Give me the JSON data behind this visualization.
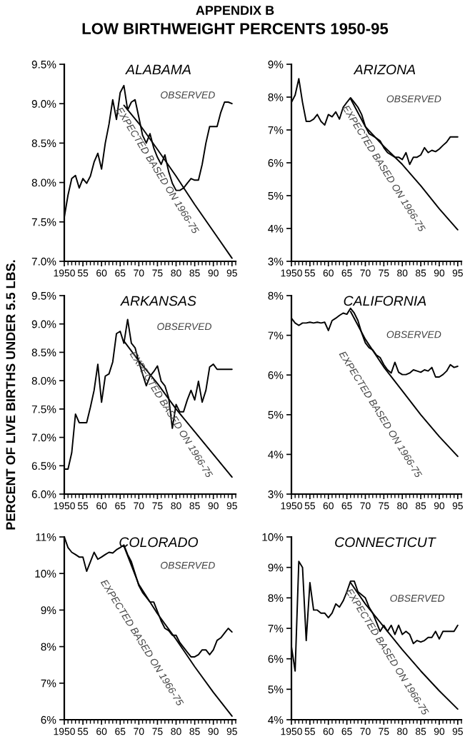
{
  "chart_data": [
    {
      "type": "line",
      "title": "ALABAMA",
      "annotations": [
        "APPENDIX B",
        "LOW BIRTHWEIGHT PERCENTS 1950-95",
        "OBSERVED",
        "EXPECTED BASED ON 1966-75"
      ],
      "xlim": [
        1950,
        1996
      ],
      "xticks": [
        {
          "value": 1950,
          "label": "1950"
        },
        {
          "value": 1955,
          "label": "55"
        },
        {
          "value": 1960,
          "label": "60"
        },
        {
          "value": 1965,
          "label": "65"
        },
        {
          "value": 1970,
          "label": "70"
        },
        {
          "value": 1975,
          "label": "75"
        },
        {
          "value": 1980,
          "label": "80"
        },
        {
          "value": 1985,
          "label": "85"
        },
        {
          "value": 1990,
          "label": "90"
        },
        {
          "value": 1995,
          "label": "95"
        }
      ],
      "ylim": [
        7.0,
        9.5
      ],
      "yticks": [
        {
          "value": 7.0,
          "label": "7.0%"
        },
        {
          "value": 7.5,
          "label": "7.5%"
        },
        {
          "value": 8.0,
          "label": "8.0%"
        },
        {
          "value": 8.5,
          "label": "8.5%"
        },
        {
          "value": 9.0,
          "label": "9.0%"
        },
        {
          "value": 9.5,
          "label": "9.5%"
        }
      ],
      "series": [
        {
          "color": "#000000",
          "x": [
            1950,
            1951,
            1952,
            1953,
            1954,
            1955,
            1956,
            1957,
            1958,
            1959,
            1960,
            1961,
            1962,
            1963,
            1964,
            1965,
            1966,
            1967,
            1968,
            1969,
            1970,
            1971,
            1972,
            1973,
            1974,
            1975,
            1976,
            1977,
            1978,
            1979,
            1980,
            1981,
            1982,
            1983,
            1984,
            1985,
            1986,
            1987,
            1988,
            1989,
            1990,
            1991,
            1992,
            1993,
            1994,
            1995
          ],
          "values": [
            7.56,
            7.84,
            8.05,
            8.09,
            7.93,
            8.05,
            7.99,
            8.08,
            8.26,
            8.37,
            8.17,
            8.5,
            8.74,
            9.05,
            8.8,
            9.14,
            9.23,
            8.92,
            9.02,
            9.05,
            8.83,
            8.6,
            8.5,
            8.62,
            8.44,
            8.32,
            8.23,
            8.35,
            8.14,
            7.99,
            7.9,
            7.9,
            7.93,
            7.99,
            8.05,
            8.03,
            8.03,
            8.23,
            8.5,
            8.71,
            8.71,
            8.71,
            8.89,
            9.02,
            9.02,
            9.0
          ]
        },
        {
          "color": "#000000",
          "x": [
            1966,
            1970,
            1975,
            1980,
            1985,
            1990,
            1995
          ],
          "values": [
            8.98,
            8.75,
            8.42,
            8.08,
            7.72,
            7.38,
            7.04
          ]
        }
      ]
    },
    {
      "type": "line",
      "title": "ARIZONA",
      "annotations": [
        "OBSERVED",
        "EXPECTED BASED ON 1966-75"
      ],
      "xlim": [
        1950,
        1996
      ],
      "xticks": [
        {
          "value": 1950,
          "label": "1950"
        },
        {
          "value": 1955,
          "label": "55"
        },
        {
          "value": 1960,
          "label": "60"
        },
        {
          "value": 1965,
          "label": "65"
        },
        {
          "value": 1970,
          "label": "70"
        },
        {
          "value": 1975,
          "label": "75"
        },
        {
          "value": 1980,
          "label": "80"
        },
        {
          "value": 1985,
          "label": "85"
        },
        {
          "value": 1990,
          "label": "90"
        },
        {
          "value": 1995,
          "label": "95"
        }
      ],
      "ylim": [
        3,
        9
      ],
      "yticks": [
        {
          "value": 3,
          "label": "3%"
        },
        {
          "value": 4,
          "label": "4%"
        },
        {
          "value": 5,
          "label": "5%"
        },
        {
          "value": 6,
          "label": "6%"
        },
        {
          "value": 7,
          "label": "7%"
        },
        {
          "value": 8,
          "label": "8%"
        },
        {
          "value": 9,
          "label": "9%"
        }
      ],
      "series": [
        {
          "color": "#000000",
          "x": [
            1950,
            1951,
            1952,
            1953,
            1954,
            1955,
            1956,
            1957,
            1958,
            1959,
            1960,
            1961,
            1962,
            1963,
            1964,
            1965,
            1966,
            1967,
            1968,
            1969,
            1970,
            1971,
            1972,
            1973,
            1974,
            1975,
            1976,
            1977,
            1978,
            1979,
            1980,
            1981,
            1982,
            1983,
            1984,
            1985,
            1986,
            1987,
            1988,
            1989,
            1990,
            1991,
            1992,
            1993,
            1994,
            1995
          ],
          "values": [
            7.84,
            8.06,
            8.56,
            7.84,
            7.26,
            7.26,
            7.33,
            7.47,
            7.26,
            7.15,
            7.47,
            7.4,
            7.55,
            7.33,
            7.69,
            7.84,
            7.98,
            7.84,
            7.69,
            7.47,
            7.11,
            6.89,
            6.82,
            6.75,
            6.67,
            6.46,
            6.31,
            6.24,
            6.17,
            6.17,
            6.1,
            6.31,
            5.95,
            6.17,
            6.17,
            6.24,
            6.46,
            6.31,
            6.38,
            6.34,
            6.42,
            6.53,
            6.63,
            6.79,
            6.79,
            6.79
          ]
        },
        {
          "color": "#000000",
          "x": [
            1966,
            1970,
            1975,
            1980,
            1985,
            1990,
            1995
          ],
          "values": [
            7.95,
            7.1,
            6.5,
            5.95,
            5.3,
            4.6,
            3.96
          ]
        }
      ]
    },
    {
      "type": "line",
      "title": "ARKANSAS",
      "ylabel": "PERCENT OF LIVE BIRTHS UNDER 5.5 LBS.",
      "annotations": [
        "OBSERVED",
        "EXPECTED BASED ON 1966-75"
      ],
      "xlim": [
        1950,
        1996
      ],
      "xticks": [
        {
          "value": 1950,
          "label": "1950"
        },
        {
          "value": 1955,
          "label": "55"
        },
        {
          "value": 1960,
          "label": "60"
        },
        {
          "value": 1965,
          "label": "65"
        },
        {
          "value": 1970,
          "label": "70"
        },
        {
          "value": 1975,
          "label": "75"
        },
        {
          "value": 1980,
          "label": "80"
        },
        {
          "value": 1985,
          "label": "85"
        },
        {
          "value": 1990,
          "label": "90"
        },
        {
          "value": 1995,
          "label": "95"
        }
      ],
      "ylim": [
        6.0,
        9.5
      ],
      "yticks": [
        {
          "value": 6.0,
          "label": "6.0%"
        },
        {
          "value": 6.5,
          "label": "6.5%"
        },
        {
          "value": 7.0,
          "label": "7.0%"
        },
        {
          "value": 7.5,
          "label": "7.5%"
        },
        {
          "value": 8.0,
          "label": "8.0%"
        },
        {
          "value": 8.5,
          "label": "8.5%"
        },
        {
          "value": 9.0,
          "label": "9.0%"
        },
        {
          "value": 9.5,
          "label": "9.5%"
        }
      ],
      "series": [
        {
          "color": "#000000",
          "x": [
            1950,
            1951,
            1952,
            1953,
            1954,
            1955,
            1956,
            1957,
            1958,
            1959,
            1960,
            1961,
            1962,
            1963,
            1964,
            1965,
            1966,
            1967,
            1968,
            1969,
            1970,
            1971,
            1972,
            1973,
            1974,
            1975,
            1976,
            1977,
            1978,
            1979,
            1980,
            1981,
            1982,
            1983,
            1984,
            1985,
            1986,
            1987,
            1988,
            1989,
            1990,
            1991,
            1992,
            1993,
            1994,
            1995
          ],
          "values": [
            6.44,
            6.44,
            6.73,
            7.41,
            7.26,
            7.26,
            7.26,
            7.53,
            7.83,
            8.29,
            7.62,
            8.08,
            8.12,
            8.33,
            8.83,
            8.87,
            8.66,
            9.08,
            8.66,
            8.58,
            8.33,
            8.12,
            7.91,
            8.08,
            8.16,
            8.26,
            7.99,
            7.91,
            7.7,
            7.16,
            7.58,
            7.45,
            7.45,
            7.66,
            7.83,
            7.66,
            7.99,
            7.62,
            7.83,
            8.24,
            8.29,
            8.2,
            8.2,
            8.2,
            8.2,
            8.2
          ]
        },
        {
          "color": "#000000",
          "x": [
            1966,
            1970,
            1975,
            1980,
            1985,
            1990,
            1995
          ],
          "values": [
            8.7,
            8.35,
            7.95,
            7.5,
            7.1,
            6.7,
            6.3
          ]
        }
      ]
    },
    {
      "type": "line",
      "title": "CALIFORNIA",
      "annotations": [
        "OBSERVED",
        "EXPECTED BASED ON 1966-75"
      ],
      "xlim": [
        1950,
        1996
      ],
      "xticks": [
        {
          "value": 1950,
          "label": "1950"
        },
        {
          "value": 1955,
          "label": "55"
        },
        {
          "value": 1960,
          "label": "60"
        },
        {
          "value": 1965,
          "label": "65"
        },
        {
          "value": 1970,
          "label": "70"
        },
        {
          "value": 1975,
          "label": "75"
        },
        {
          "value": 1980,
          "label": "80"
        },
        {
          "value": 1985,
          "label": "85"
        },
        {
          "value": 1990,
          "label": "90"
        },
        {
          "value": 1995,
          "label": "95"
        }
      ],
      "ylim": [
        3,
        8
      ],
      "yticks": [
        {
          "value": 3,
          "label": "3%"
        },
        {
          "value": 4,
          "label": "4%"
        },
        {
          "value": 5,
          "label": "5%"
        },
        {
          "value": 6,
          "label": "6%"
        },
        {
          "value": 7,
          "label": "7%"
        },
        {
          "value": 8,
          "label": "8%"
        }
      ],
      "series": [
        {
          "color": "#000000",
          "x": [
            1950,
            1951,
            1952,
            1953,
            1954,
            1955,
            1956,
            1957,
            1958,
            1959,
            1960,
            1961,
            1962,
            1963,
            1964,
            1965,
            1966,
            1967,
            1968,
            1969,
            1970,
            1971,
            1972,
            1973,
            1974,
            1975,
            1976,
            1977,
            1978,
            1979,
            1980,
            1981,
            1982,
            1983,
            1984,
            1985,
            1986,
            1987,
            1988,
            1989,
            1990,
            1991,
            1992,
            1993,
            1994,
            1995
          ],
          "values": [
            7.43,
            7.31,
            7.25,
            7.31,
            7.31,
            7.33,
            7.31,
            7.33,
            7.31,
            7.33,
            7.12,
            7.37,
            7.43,
            7.5,
            7.56,
            7.53,
            7.68,
            7.56,
            7.37,
            7.06,
            6.81,
            6.69,
            6.63,
            6.5,
            6.44,
            6.26,
            6.13,
            6.05,
            6.32,
            6.07,
            6.01,
            6.01,
            6.05,
            6.13,
            6.1,
            6.07,
            6.13,
            6.1,
            6.19,
            5.95,
            5.95,
            6.01,
            6.1,
            6.26,
            6.19,
            6.22
          ]
        },
        {
          "color": "#000000",
          "x": [
            1966,
            1970,
            1975,
            1980,
            1985,
            1990,
            1995
          ],
          "values": [
            7.6,
            6.9,
            6.2,
            5.6,
            5.0,
            4.45,
            3.95
          ]
        }
      ]
    },
    {
      "type": "line",
      "title": "COLORADO",
      "annotations": [
        "OBSERVED",
        "EXPECTED BASED ON 1966-75"
      ],
      "xlim": [
        1950,
        1996
      ],
      "xticks": [
        {
          "value": 1950,
          "label": "1950"
        },
        {
          "value": 1955,
          "label": "55"
        },
        {
          "value": 1960,
          "label": "60"
        },
        {
          "value": 1965,
          "label": "65"
        },
        {
          "value": 1970,
          "label": "70"
        },
        {
          "value": 1975,
          "label": "75"
        },
        {
          "value": 1980,
          "label": "80"
        },
        {
          "value": 1985,
          "label": "85"
        },
        {
          "value": 1990,
          "label": "90"
        },
        {
          "value": 1995,
          "label": "95"
        }
      ],
      "ylim": [
        6,
        11
      ],
      "yticks": [
        {
          "value": 6,
          "label": "6%"
        },
        {
          "value": 7,
          "label": "7%"
        },
        {
          "value": 8,
          "label": "8%"
        },
        {
          "value": 9,
          "label": "9%"
        },
        {
          "value": 10,
          "label": "10%"
        },
        {
          "value": 11,
          "label": "11%"
        }
      ],
      "series": [
        {
          "color": "#000000",
          "x": [
            1950,
            1951,
            1952,
            1953,
            1954,
            1955,
            1956,
            1957,
            1958,
            1959,
            1960,
            1961,
            1962,
            1963,
            1964,
            1965,
            1966,
            1967,
            1968,
            1969,
            1970,
            1971,
            1972,
            1973,
            1974,
            1975,
            1976,
            1977,
            1978,
            1979,
            1980,
            1981,
            1982,
            1983,
            1984,
            1985,
            1986,
            1987,
            1988,
            1989,
            1990,
            1991,
            1992,
            1993,
            1994,
            1995
          ],
          "values": [
            11.0,
            10.71,
            10.58,
            10.52,
            10.45,
            10.45,
            10.06,
            10.32,
            10.58,
            10.39,
            10.45,
            10.52,
            10.58,
            10.56,
            10.65,
            10.71,
            10.78,
            10.52,
            10.32,
            10.0,
            9.67,
            9.48,
            9.35,
            9.22,
            9.22,
            8.96,
            8.7,
            8.5,
            8.44,
            8.31,
            8.31,
            8.11,
            7.98,
            7.85,
            7.72,
            7.72,
            7.78,
            7.91,
            7.91,
            7.78,
            7.91,
            8.17,
            8.24,
            8.37,
            8.5,
            8.4
          ]
        },
        {
          "color": "#000000",
          "x": [
            1966,
            1970,
            1975,
            1980,
            1985,
            1990,
            1995
          ],
          "values": [
            10.75,
            9.7,
            8.9,
            8.2,
            7.45,
            6.75,
            6.1
          ]
        }
      ]
    },
    {
      "type": "line",
      "title": "CONNECTICUT",
      "annotations": [
        "OBSERVED",
        "EXPECTED BASED ON 1966-75"
      ],
      "xlim": [
        1950,
        1996
      ],
      "xticks": [
        {
          "value": 1950,
          "label": "1950"
        },
        {
          "value": 1955,
          "label": "55"
        },
        {
          "value": 1960,
          "label": "60"
        },
        {
          "value": 1965,
          "label": "65"
        },
        {
          "value": 1970,
          "label": "70"
        },
        {
          "value": 1975,
          "label": "75"
        },
        {
          "value": 1980,
          "label": "80"
        },
        {
          "value": 1985,
          "label": "85"
        },
        {
          "value": 1990,
          "label": "90"
        },
        {
          "value": 1995,
          "label": "95"
        }
      ],
      "ylim": [
        4,
        10
      ],
      "yticks": [
        {
          "value": 4,
          "label": "4%"
        },
        {
          "value": 5,
          "label": "5%"
        },
        {
          "value": 6,
          "label": "6%"
        },
        {
          "value": 7,
          "label": "7%"
        },
        {
          "value": 8,
          "label": "8%"
        },
        {
          "value": 9,
          "label": "9%"
        },
        {
          "value": 10,
          "label": "10%"
        }
      ],
      "series": [
        {
          "color": "#000000",
          "x": [
            1950,
            1951,
            1952,
            1953,
            1954,
            1955,
            1956,
            1957,
            1958,
            1959,
            1960,
            1961,
            1962,
            1963,
            1964,
            1965,
            1966,
            1967,
            1968,
            1969,
            1970,
            1971,
            1972,
            1973,
            1974,
            1975,
            1976,
            1977,
            1978,
            1979,
            1980,
            1981,
            1982,
            1983,
            1984,
            1985,
            1986,
            1987,
            1988,
            1989,
            1990,
            1991,
            1992,
            1993,
            1994,
            1995
          ],
          "values": [
            6.4,
            5.6,
            9.2,
            9.0,
            6.6,
            8.5,
            7.6,
            7.6,
            7.5,
            7.5,
            7.35,
            7.5,
            7.8,
            7.7,
            7.9,
            8.2,
            8.55,
            8.55,
            8.2,
            8.1,
            8.0,
            7.7,
            7.5,
            7.2,
            6.9,
            7.1,
            6.9,
            7.1,
            6.8,
            7.1,
            6.8,
            6.9,
            6.8,
            6.5,
            6.6,
            6.55,
            6.6,
            6.7,
            6.7,
            6.9,
            6.65,
            6.9,
            6.9,
            6.9,
            6.9,
            7.1
          ]
        },
        {
          "color": "#000000",
          "x": [
            1966,
            1970,
            1975,
            1980,
            1985,
            1990,
            1995
          ],
          "values": [
            8.5,
            7.8,
            7.05,
            6.3,
            5.6,
            4.95,
            4.35
          ]
        }
      ]
    }
  ]
}
